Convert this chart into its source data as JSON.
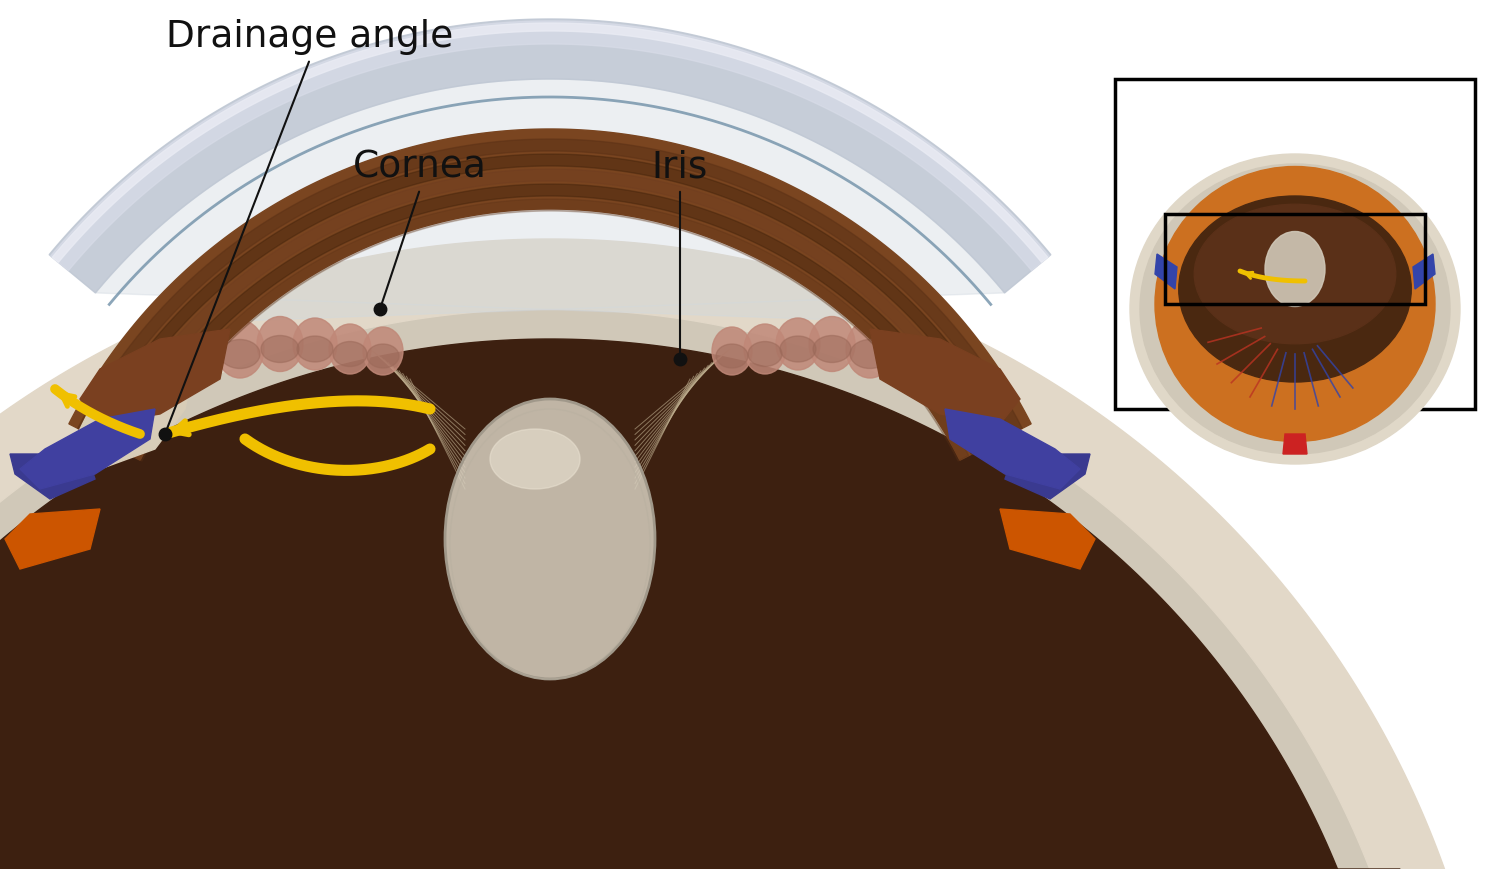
{
  "labels": {
    "drainage_angle": "Drainage angle",
    "cornea": "Cornea",
    "iris": "Iris"
  },
  "colors": {
    "background": "#ffffff",
    "sclera_beige": "#e2d8c8",
    "sclera_inner": "#d0c8b8",
    "cornea_outer": "#c8ccd8",
    "cornea_mid": "#d8dce8",
    "cornea_inner_edge": "#a0b4cc",
    "anterior_chamber": "#d8e0ec",
    "iris_brown": "#7a4520",
    "iris_dark": "#3d1f08",
    "iris_mid": "#5a3015",
    "ciliary_dark": "#6b3a1f",
    "scleral_spur": "#e0d0b8",
    "pink_ciliary": "#c08878",
    "lens_body": "#d8d0c0",
    "lens_rim": "#b8b0a0",
    "zonule_color": "#c0b090",
    "yellow_arrow": "#f0c000",
    "purple_sclera": "#4040a0",
    "orange_choroid": "#cc5500",
    "dark_interior": "#3d2010",
    "vitreous": "#6b4020",
    "annotation_dot": "#111111",
    "annotation_line": "#111111",
    "label_text": "#111111",
    "inset_border": "#111111",
    "inset_sclera": "#d8cdb8",
    "inset_orange": "#cc7020",
    "inset_dark": "#3d1f08",
    "inset_blue": "#3344aa",
    "inset_red": "#cc2222",
    "inset_vessel_red": "#bb3322",
    "inset_vessel_blue": "#3344aa"
  },
  "figsize": [
    15.0,
    8.7
  ],
  "dpi": 100
}
